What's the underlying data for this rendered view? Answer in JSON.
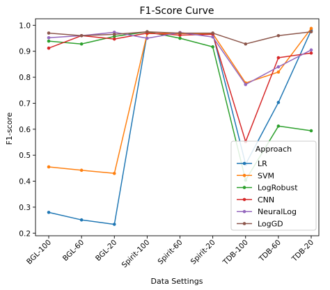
{
  "chart_data": {
    "type": "line",
    "title": "F1-Score Curve",
    "xlabel": "Data Settings",
    "ylabel": "F1-score",
    "ylim": [
      0.19,
      1.025
    ],
    "yticks": [
      0.2,
      0.3,
      0.4,
      0.5,
      0.6,
      0.7,
      0.8,
      0.9,
      1.0
    ],
    "ytick_labels": [
      "0.2",
      "0.3",
      "0.4",
      "0.5",
      "0.6",
      "0.7",
      "0.8",
      "0.9",
      "1.0"
    ],
    "grid": false,
    "categories": [
      "BGL-100",
      "BGL-60",
      "BGL-20",
      "Spirit-100",
      "Spirit-60",
      "Spirit-20",
      "TDB-100",
      "TDB-60",
      "TDB-20"
    ],
    "legend": {
      "title": "Approach",
      "position": "lower-right"
    },
    "series": [
      {
        "name": "LR",
        "color": "#1f77b4",
        "values": [
          0.28,
          0.251,
          0.234,
          0.968,
          0.968,
          0.968,
          0.465,
          0.703,
          0.981
        ]
      },
      {
        "name": "SVM",
        "color": "#ff7f0e",
        "values": [
          0.455,
          0.442,
          0.43,
          0.968,
          0.968,
          0.968,
          0.778,
          0.82,
          0.988
        ]
      },
      {
        "name": "LogRobust",
        "color": "#2ca02c",
        "values": [
          0.939,
          0.928,
          0.957,
          0.975,
          0.95,
          0.917,
          0.404,
          0.612,
          0.594
        ]
      },
      {
        "name": "CNN",
        "color": "#d62728",
        "values": [
          0.912,
          0.96,
          0.947,
          0.97,
          0.962,
          0.965,
          0.552,
          0.875,
          0.893
        ]
      },
      {
        "name": "NeuralLog",
        "color": "#9467bd",
        "values": [
          0.952,
          0.96,
          0.973,
          0.95,
          0.972,
          0.955,
          0.772,
          0.84,
          0.905
        ]
      },
      {
        "name": "LogGD",
        "color": "#8c564b",
        "values": [
          0.97,
          0.96,
          0.965,
          0.975,
          0.97,
          0.97,
          0.928,
          0.96,
          0.975
        ]
      }
    ]
  }
}
